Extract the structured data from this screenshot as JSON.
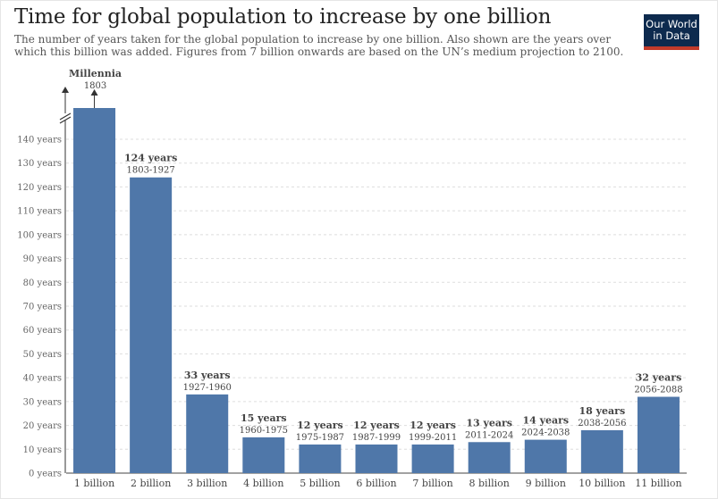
{
  "header": {
    "title": "Time for global population to increase by one billion",
    "subtitle": "The number of years taken for the global population to increase by one billion. Also shown are the years over which this billion was added. Figures from 7 billion onwards are based on the UN’s medium projection to 2100.",
    "logo_line1": "Our World",
    "logo_line2": "in Data"
  },
  "colors": {
    "bar": "#4f77a9",
    "text": "#444444",
    "grid": "#dddddd",
    "logo_bg": "#0d2a4e",
    "logo_accent": "#c23a2a"
  },
  "chart_data": {
    "type": "bar",
    "title": "Time for global population to increase by one billion",
    "ylim": [
      0,
      140
    ],
    "yticks": [
      "0 years",
      "10 years",
      "20 years",
      "30 years",
      "40 years",
      "50 years",
      "60 years",
      "70 years",
      "80 years",
      "90 years",
      "100 years",
      "110 years",
      "120 years",
      "130 years",
      "140 years"
    ],
    "categories": [
      "1 billion",
      "2 billion",
      "3 billion",
      "4 billion",
      "5 billion",
      "6 billion",
      "7 billion",
      "8 billion",
      "9 billion",
      "10 billion",
      "11 billion"
    ],
    "values": [
      null,
      124,
      33,
      15,
      12,
      12,
      12,
      13,
      14,
      18,
      32
    ],
    "labels": [
      "Millennia",
      "124 years",
      "33 years",
      "15 years",
      "12 years",
      "12 years",
      "12 years",
      "13 years",
      "14 years",
      "18 years",
      "32 years"
    ],
    "periods": [
      "1803",
      "1803-1927",
      "1927-1960",
      "1960-1975",
      "1975-1987",
      "1987-1999",
      "1999-2011",
      "2011-2024",
      "2024-2038",
      "2038-2056",
      "2056-2088"
    ],
    "broken_axis_bar": "1 billion",
    "grid": true
  }
}
